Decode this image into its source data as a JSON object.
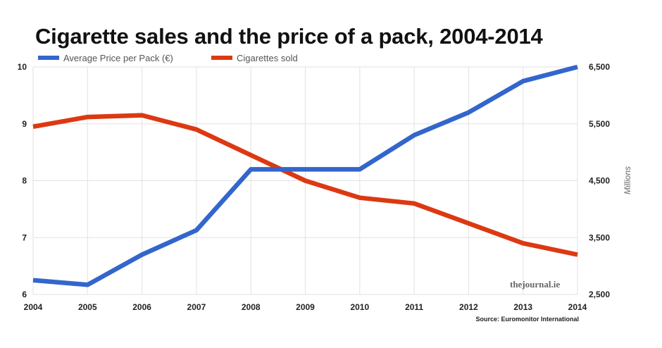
{
  "chart_data": {
    "type": "line",
    "title": "Cigarette sales and the price of a pack, 2004-2014",
    "categories": [
      "2004",
      "2005",
      "2006",
      "2007",
      "2008",
      "2009",
      "2010",
      "2011",
      "2012",
      "2013",
      "2014"
    ],
    "y_left": {
      "ylim": [
        6,
        10
      ],
      "ticks": [
        "6",
        "7",
        "8",
        "9",
        "10"
      ]
    },
    "y_right": {
      "ylim": [
        2500,
        6500
      ],
      "ticks": [
        "2,500",
        "3,500",
        "4,500",
        "5,500",
        "6,500"
      ],
      "label": "Millions"
    },
    "series": [
      {
        "name": "Average Price per Pack (€)",
        "axis": "left",
        "color": "#3366cc",
        "values": [
          6.25,
          6.17,
          6.7,
          7.13,
          8.2,
          8.2,
          8.2,
          8.8,
          9.2,
          9.75,
          10.0
        ]
      },
      {
        "name": "Cigarettes sold",
        "axis": "right",
        "color": "#dc3912",
        "values": [
          5450,
          5620,
          5650,
          5400,
          4950,
          4500,
          4200,
          4100,
          3750,
          3400,
          3200
        ]
      }
    ],
    "grid": true,
    "legend": "top-left",
    "source": "Source: Euromonitor International",
    "watermark": "thejournal.ie"
  }
}
